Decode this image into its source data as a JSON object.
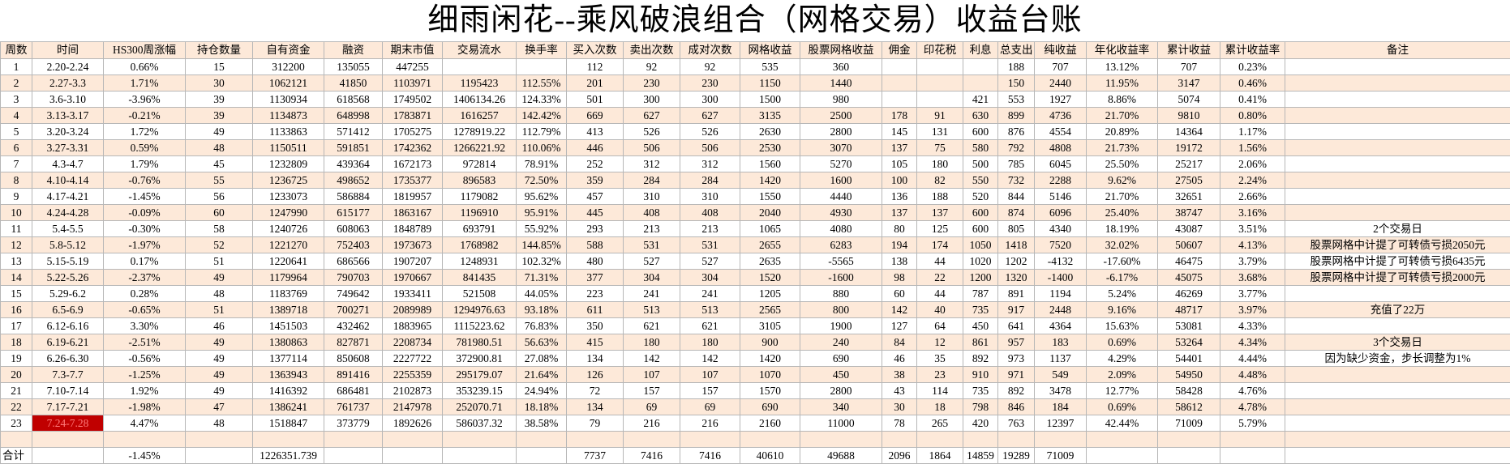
{
  "title": "细雨闲花--乘风破浪组合（网格交易）收益台账",
  "table": {
    "header": [
      "周数",
      "时间",
      "HS300周涨幅",
      "持仓数量",
      "自有资金",
      "融资",
      "期末市值",
      "交易流水",
      "换手率",
      "买入次数",
      "卖出次数",
      "成对次数",
      "网格收益",
      "股票网格收益",
      "佣金",
      "印花税",
      "利息",
      "总支出",
      "纯收益",
      "年化收益率",
      "累计收益",
      "累计收益率",
      "备注"
    ],
    "rows": [
      [
        "1",
        "2.20-2.24",
        "0.66%",
        "15",
        "312200",
        "135055",
        "447255",
        null,
        null,
        "112",
        "92",
        "92",
        "535",
        "360",
        null,
        null,
        null,
        "188",
        "707",
        "13.12%",
        "707",
        "0.23%",
        null
      ],
      [
        "2",
        "2.27-3.3",
        "1.71%",
        "30",
        "1062121",
        "41850",
        "1103971",
        "1195423",
        "112.55%",
        "201",
        "230",
        "230",
        "1150",
        "1440",
        null,
        null,
        null,
        "150",
        "2440",
        "11.95%",
        "3147",
        "0.46%",
        null
      ],
      [
        "3",
        "3.6-3.10",
        "-3.96%",
        "39",
        "1130934",
        "618568",
        "1749502",
        "1406134.26",
        "124.33%",
        "501",
        "300",
        "300",
        "1500",
        "980",
        null,
        null,
        "421",
        "553",
        "1927",
        "8.86%",
        "5074",
        "0.41%",
        null
      ],
      [
        "4",
        "3.13-3.17",
        "-0.21%",
        "39",
        "1134873",
        "648998",
        "1783871",
        "1616257",
        "142.42%",
        "669",
        "627",
        "627",
        "3135",
        "2500",
        "178",
        "91",
        "630",
        "899",
        "4736",
        "21.70%",
        "9810",
        "0.80%",
        null
      ],
      [
        "5",
        "3.20-3.24",
        "1.72%",
        "49",
        "1133863",
        "571412",
        "1705275",
        "1278919.22",
        "112.79%",
        "413",
        "526",
        "526",
        "2630",
        "2800",
        "145",
        "131",
        "600",
        "876",
        "4554",
        "20.89%",
        "14364",
        "1.17%",
        null
      ],
      [
        "6",
        "3.27-3.31",
        "0.59%",
        "48",
        "1150511",
        "591851",
        "1742362",
        "1266221.92",
        "110.06%",
        "446",
        "506",
        "506",
        "2530",
        "3070",
        "137",
        "75",
        "580",
        "792",
        "4808",
        "21.73%",
        "19172",
        "1.56%",
        null
      ],
      [
        "7",
        "4.3-4.7",
        "1.79%",
        "45",
        "1232809",
        "439364",
        "1672173",
        "972814",
        "78.91%",
        "252",
        "312",
        "312",
        "1560",
        "5270",
        "105",
        "180",
        "500",
        "785",
        "6045",
        "25.50%",
        "25217",
        "2.06%",
        null
      ],
      [
        "8",
        "4.10-4.14",
        "-0.76%",
        "55",
        "1236725",
        "498652",
        "1735377",
        "896583",
        "72.50%",
        "359",
        "284",
        "284",
        "1420",
        "1600",
        "100",
        "82",
        "550",
        "732",
        "2288",
        "9.62%",
        "27505",
        "2.24%",
        null
      ],
      [
        "9",
        "4.17-4.21",
        "-1.45%",
        "56",
        "1233073",
        "586884",
        "1819957",
        "1179082",
        "95.62%",
        "457",
        "310",
        "310",
        "1550",
        "4440",
        "136",
        "188",
        "520",
        "844",
        "5146",
        "21.70%",
        "32651",
        "2.66%",
        null
      ],
      [
        "10",
        "4.24-4.28",
        "-0.09%",
        "60",
        "1247990",
        "615177",
        "1863167",
        "1196910",
        "95.91%",
        "445",
        "408",
        "408",
        "2040",
        "4930",
        "137",
        "137",
        "600",
        "874",
        "6096",
        "25.40%",
        "38747",
        "3.16%",
        null
      ],
      [
        "11",
        "5.4-5.5",
        "-0.30%",
        "58",
        "1240726",
        "608063",
        "1848789",
        "693791",
        "55.92%",
        "293",
        "213",
        "213",
        "1065",
        "4080",
        "80",
        "125",
        "600",
        "805",
        "4340",
        "18.19%",
        "43087",
        "3.51%",
        "2个交易日"
      ],
      [
        "12",
        "5.8-5.12",
        "-1.97%",
        "52",
        "1221270",
        "752403",
        "1973673",
        "1768982",
        "144.85%",
        "588",
        "531",
        "531",
        "2655",
        "6283",
        "194",
        "174",
        "1050",
        "1418",
        "7520",
        "32.02%",
        "50607",
        "4.13%",
        "股票网格中计提了可转债亏损2050元"
      ],
      [
        "13",
        "5.15-5.19",
        "0.17%",
        "51",
        "1220641",
        "686566",
        "1907207",
        "1248931",
        "102.32%",
        "480",
        "527",
        "527",
        "2635",
        "-5565",
        "138",
        "44",
        "1020",
        "1202",
        "-4132",
        "-17.60%",
        "46475",
        "3.79%",
        "股票网格中计提了可转债亏损6435元"
      ],
      [
        "14",
        "5.22-5.26",
        "-2.37%",
        "49",
        "1179964",
        "790703",
        "1970667",
        "841435",
        "71.31%",
        "377",
        "304",
        "304",
        "1520",
        "-1600",
        "98",
        "22",
        "1200",
        "1320",
        "-1400",
        "-6.17%",
        "45075",
        "3.68%",
        "股票网格中计提了可转债亏损2000元"
      ],
      [
        "15",
        "5.29-6.2",
        "0.28%",
        "48",
        "1183769",
        "749642",
        "1933411",
        "521508",
        "44.05%",
        "223",
        "241",
        "241",
        "1205",
        "880",
        "60",
        "44",
        "787",
        "891",
        "1194",
        "5.24%",
        "46269",
        "3.77%",
        null
      ],
      [
        "16",
        "6.5-6.9",
        "-0.65%",
        "51",
        "1389718",
        "700271",
        "2089989",
        "1294976.63",
        "93.18%",
        "611",
        "513",
        "513",
        "2565",
        "800",
        "142",
        "40",
        "735",
        "917",
        "2448",
        "9.16%",
        "48717",
        "3.97%",
        "充值了22万"
      ],
      [
        "17",
        "6.12-6.16",
        "3.30%",
        "46",
        "1451503",
        "432462",
        "1883965",
        "1115223.62",
        "76.83%",
        "350",
        "621",
        "621",
        "3105",
        "1900",
        "127",
        "64",
        "450",
        "641",
        "4364",
        "15.63%",
        "53081",
        "4.33%",
        null
      ],
      [
        "18",
        "6.19-6.21",
        "-2.51%",
        "49",
        "1380863",
        "827871",
        "2208734",
        "781980.51",
        "56.63%",
        "415",
        "180",
        "180",
        "900",
        "240",
        "84",
        "12",
        "861",
        "957",
        "183",
        "0.69%",
        "53264",
        "4.34%",
        "3个交易日"
      ],
      [
        "19",
        "6.26-6.30",
        "-0.56%",
        "49",
        "1377114",
        "850608",
        "2227722",
        "372900.81",
        "27.08%",
        "134",
        "142",
        "142",
        "1420",
        "690",
        "46",
        "35",
        "892",
        "973",
        "1137",
        "4.29%",
        "54401",
        "4.44%",
        "因为缺少资金，步长调整为1%"
      ],
      [
        "20",
        "7.3-7.7",
        "-1.25%",
        "49",
        "1363943",
        "891416",
        "2255359",
        "295179.07",
        "21.64%",
        "126",
        "107",
        "107",
        "1070",
        "450",
        "38",
        "23",
        "910",
        "971",
        "549",
        "2.09%",
        "54950",
        "4.48%",
        null
      ],
      [
        "21",
        "7.10-7.14",
        "1.92%",
        "49",
        "1416392",
        "686481",
        "2102873",
        "353239.15",
        "24.94%",
        "72",
        "157",
        "157",
        "1570",
        "2800",
        "43",
        "114",
        "735",
        "892",
        "3478",
        "12.77%",
        "58428",
        "4.76%",
        null
      ],
      [
        "22",
        "7.17-7.21",
        "-1.98%",
        "47",
        "1386241",
        "761737",
        "2147978",
        "252070.71",
        "18.18%",
        "134",
        "69",
        "69",
        "690",
        "340",
        "30",
        "18",
        "798",
        "846",
        "184",
        "0.69%",
        "58612",
        "4.78%",
        null
      ],
      [
        "23",
        "7.24-7.28",
        "4.47%",
        "48",
        "1518847",
        "373779",
        "1892626",
        "586037.32",
        "38.58%",
        "79",
        "216",
        "216",
        "2160",
        "11000",
        "78",
        "265",
        "420",
        "763",
        "12397",
        "42.44%",
        "71009",
        "5.79%",
        null
      ]
    ],
    "total": [
      "合计",
      null,
      "-1.45%",
      null,
      "1226351.739",
      null,
      null,
      null,
      null,
      "7737",
      "7416",
      "7416",
      "40610",
      "49688",
      "2096",
      "1864",
      "14859",
      "19289",
      "71009",
      null,
      null,
      null,
      null
    ]
  }
}
